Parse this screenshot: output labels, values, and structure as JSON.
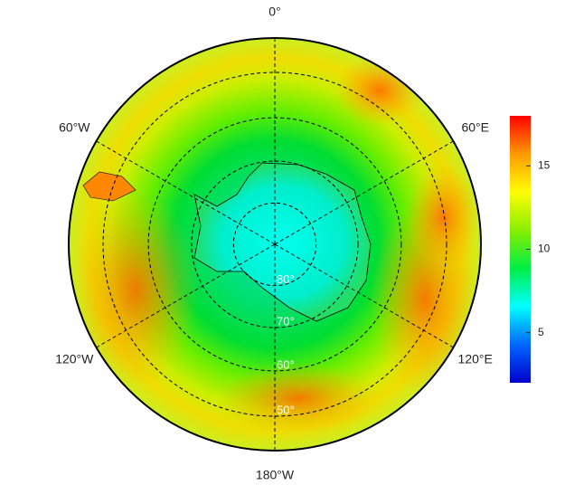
{
  "map": {
    "longitudes": [
      {
        "value": 0,
        "label": "0°"
      },
      {
        "value": 60,
        "label": "60°E"
      },
      {
        "value": 120,
        "label": "120°E"
      },
      {
        "value": 180,
        "label": "180°W"
      },
      {
        "value": -120,
        "label": "120°W"
      },
      {
        "value": -60,
        "label": "60°W"
      }
    ],
    "latitudes": [
      {
        "value": -80,
        "label": "80°"
      },
      {
        "value": -70,
        "label": "70°"
      },
      {
        "value": -60,
        "label": "60°"
      },
      {
        "value": -50,
        "label": "50°"
      }
    ],
    "colorbar": {
      "range": [
        2,
        18
      ],
      "ticks": [
        5,
        10,
        15
      ],
      "colors": [
        "#0000cc",
        "#0066ff",
        "#00ffff",
        "#00ee44",
        "#88ee00",
        "#ffff00",
        "#ff9900",
        "#ff0000"
      ]
    }
  }
}
